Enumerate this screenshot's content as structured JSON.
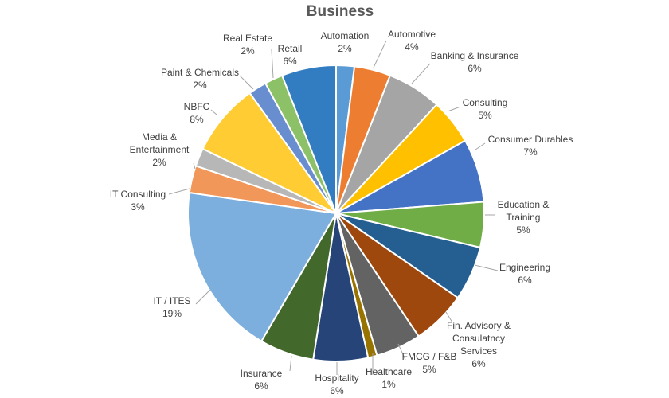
{
  "chart_data": {
    "type": "pie",
    "title": "Business",
    "slices": [
      {
        "name": "Automation",
        "label_lines": [
          "Automation"
        ],
        "value": 2,
        "pct_label": "2%",
        "color": "#5b9bd5"
      },
      {
        "name": "Automotive",
        "label_lines": [
          "Automotive"
        ],
        "value": 4,
        "pct_label": "4%",
        "color": "#ed7d31"
      },
      {
        "name": "Banking & Insurance",
        "label_lines": [
          "Banking & Insurance"
        ],
        "value": 6,
        "pct_label": "6%",
        "color": "#a5a5a5"
      },
      {
        "name": "Consulting",
        "label_lines": [
          "Consulting"
        ],
        "value": 5,
        "pct_label": "5%",
        "color": "#ffc000"
      },
      {
        "name": "Consumer Durables",
        "label_lines": [
          "Consumer Durables"
        ],
        "value": 7,
        "pct_label": "7%",
        "color": "#4472c4"
      },
      {
        "name": "Education & Training",
        "label_lines": [
          "Education &",
          "Training"
        ],
        "value": 5,
        "pct_label": "5%",
        "color": "#70ad47"
      },
      {
        "name": "Engineering",
        "label_lines": [
          "Engineering"
        ],
        "value": 6,
        "pct_label": "6%",
        "color": "#255e91"
      },
      {
        "name": "Fin. Advisory & Consulatncy Services",
        "label_lines": [
          "Fin. Advisory &",
          "Consulatncy",
          "Services"
        ],
        "value": 6,
        "pct_label": "6%",
        "color": "#9e480e"
      },
      {
        "name": "FMCG / F&B",
        "label_lines": [
          "FMCG / F&B"
        ],
        "value": 5,
        "pct_label": "5%",
        "color": "#636363"
      },
      {
        "name": "Healthcare",
        "label_lines": [
          "Healthcare"
        ],
        "value": 1,
        "pct_label": "1%",
        "color": "#997300"
      },
      {
        "name": "Hospitality",
        "label_lines": [
          "Hospitality"
        ],
        "value": 6,
        "pct_label": "6%",
        "color": "#264478"
      },
      {
        "name": "Insurance",
        "label_lines": [
          "Insurance"
        ],
        "value": 6,
        "pct_label": "6%",
        "color": "#43682b"
      },
      {
        "name": "IT / ITES",
        "label_lines": [
          "IT / ITES"
        ],
        "value": 19,
        "pct_label": "19%",
        "color": "#7cafdd"
      },
      {
        "name": "IT Consulting",
        "label_lines": [
          "IT Consulting"
        ],
        "value": 3,
        "pct_label": "3%",
        "color": "#f1975a"
      },
      {
        "name": "Media & Entertainment",
        "label_lines": [
          "Media &",
          "Entertainment"
        ],
        "value": 2,
        "pct_label": "2%",
        "color": "#b7b7b7"
      },
      {
        "name": "NBFC",
        "label_lines": [
          "NBFC"
        ],
        "value": 8,
        "pct_label": "8%",
        "color": "#ffcd33"
      },
      {
        "name": "Paint & Chemicals",
        "label_lines": [
          "Paint & Chemicals"
        ],
        "value": 2,
        "pct_label": "2%",
        "color": "#698ed0"
      },
      {
        "name": "Real Estate",
        "label_lines": [
          "Real Estate"
        ],
        "value": 2,
        "pct_label": "2%",
        "color": "#8cc168"
      },
      {
        "name": "Retail",
        "label_lines": [
          "Retail"
        ],
        "value": 6,
        "pct_label": "6%",
        "color": "#327dc2"
      }
    ],
    "legend": "none",
    "data_labels": "outside-with-leader-lines"
  }
}
